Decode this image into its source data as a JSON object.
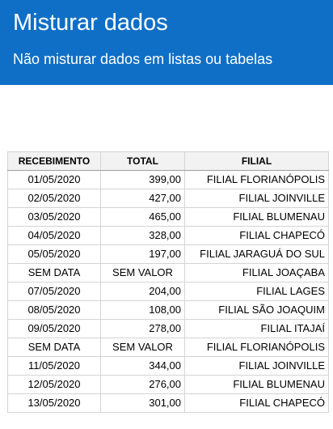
{
  "banner": {
    "title": "Misturar dados",
    "subtitle": "Não misturar dados em listas ou tabelas"
  },
  "table": {
    "headers": [
      "RECEBIMENTO",
      "TOTAL",
      "FILIAL"
    ],
    "rows": [
      [
        "01/05/2020",
        "399,00",
        "FILIAL FLORIANÓPOLIS"
      ],
      [
        "02/05/2020",
        "427,00",
        "FILIAL JOINVILLE"
      ],
      [
        "03/05/2020",
        "465,00",
        "FILIAL BLUMENAU"
      ],
      [
        "04/05/2020",
        "328,00",
        "FILIAL CHAPECÓ"
      ],
      [
        "05/05/2020",
        "197,00",
        "FILIAL JARAGUÁ DO SUL"
      ],
      [
        "SEM DATA",
        "SEM VALOR",
        "FILIAL JOAÇABA"
      ],
      [
        "07/05/2020",
        "204,00",
        "FILIAL LAGES"
      ],
      [
        "08/05/2020",
        "108,00",
        "FILIAL SÃO JOAQUIM"
      ],
      [
        "09/05/2020",
        "278,00",
        "FILIAL ITAJAÍ"
      ],
      [
        "SEM DATA",
        "SEM VALOR",
        "FILIAL FLORIANÓPOLIS"
      ],
      [
        "11/05/2020",
        "344,00",
        "FILIAL JOINVILLE"
      ],
      [
        "12/05/2020",
        "276,00",
        "FILIAL BLUMENAU"
      ],
      [
        "13/05/2020",
        "301,00",
        "FILIAL CHAPECÓ"
      ]
    ]
  },
  "colors": {
    "banner_bg": "#0f6fc6",
    "banner_text": "#ffffff",
    "header_bg": "#f2f2f2",
    "grid": "#d4d4d4"
  }
}
